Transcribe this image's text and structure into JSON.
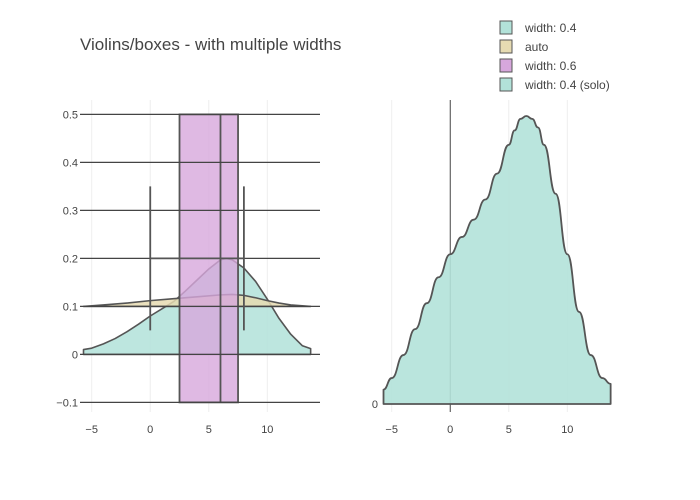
{
  "title": "Violins/boxes - with multiple widths",
  "legend": {
    "items": [
      {
        "label": "width: 0.4",
        "color": "#b2e2d9"
      },
      {
        "label": "auto",
        "color": "#e6dbb2"
      },
      {
        "label": "width: 0.6",
        "color": "#d7a7dc"
      },
      {
        "label": "width: 0.4 (solo)",
        "color": "#b2e2d9"
      }
    ]
  },
  "chart_data": [
    {
      "type": "violin",
      "panel": "left",
      "xlim": [
        -6,
        14.5
      ],
      "ylim": [
        -0.12,
        0.53
      ],
      "x_ticks": [
        -5,
        0,
        5,
        10
      ],
      "x_tick_labels": [
        "−5",
        "0",
        "5",
        "10"
      ],
      "y_ticks": [
        -0.1,
        0,
        0.1,
        0.2,
        0.3,
        0.4,
        0.5
      ],
      "y_tick_labels": [
        "−0.1",
        "0",
        "0.1",
        "0.2",
        "0.3",
        "0.4",
        "0.5"
      ],
      "grid": true,
      "box_series": {
        "name": "width: 0.6",
        "color": "#d7a7dc",
        "q1": 2.5,
        "median": 6,
        "q3": 7.5,
        "y_span": [
          -0.1,
          0.5
        ],
        "category_lines": [
          -0.1,
          0,
          0.1,
          0.2,
          0.3,
          0.4,
          0.5
        ]
      },
      "whisker_series": {
        "name": "auto",
        "whiskers": [
          {
            "x": 0,
            "y_range": [
              0.05,
              0.35
            ]
          },
          {
            "x": 8,
            "y_range": [
              0.05,
              0.35
            ]
          }
        ],
        "bar": {
          "x_range": [
            0,
            8
          ],
          "y": 0.2
        }
      },
      "violins": [
        {
          "name": "width: 0.4",
          "color": "#b2e2d9",
          "baseline": 0,
          "x": [
            -5.7,
            -5,
            -4,
            -3,
            -2,
            -1,
            0,
            1,
            2,
            3,
            4,
            5,
            6,
            6.5,
            7,
            8,
            9,
            10,
            11,
            12,
            13,
            13.7
          ],
          "y": [
            0.01,
            0.013,
            0.022,
            0.033,
            0.047,
            0.063,
            0.08,
            0.095,
            0.11,
            0.132,
            0.155,
            0.178,
            0.197,
            0.2,
            0.197,
            0.18,
            0.152,
            0.115,
            0.075,
            0.042,
            0.018,
            0.012
          ]
        },
        {
          "name": "auto",
          "color": "#e6dbb2",
          "baseline": 0.1,
          "x": [
            -5.7,
            -4,
            -2,
            0,
            2,
            4,
            6,
            7,
            8,
            9,
            10,
            11,
            12,
            13.7
          ],
          "y": [
            0.1,
            0.103,
            0.107,
            0.112,
            0.116,
            0.12,
            0.124,
            0.125,
            0.123,
            0.118,
            0.112,
            0.107,
            0.103,
            0.1
          ]
        }
      ]
    },
    {
      "type": "violin",
      "panel": "right",
      "xlim": [
        -6,
        14.5
      ],
      "x_ticks": [
        -5,
        0,
        5,
        10
      ],
      "x_tick_labels": [
        "−5",
        "0",
        "5",
        "10"
      ],
      "y_tick_labels": [
        "0"
      ],
      "grid": true,
      "violins": [
        {
          "name": "width: 0.4 (solo)",
          "color": "#b2e2d9",
          "baseline": 0,
          "x": [
            -5.7,
            -5,
            -4,
            -3,
            -2,
            -1,
            0,
            1,
            2,
            3,
            4,
            5,
            5.5,
            6,
            6.5,
            7,
            7.5,
            8,
            9,
            10,
            11,
            12,
            13,
            13.7
          ],
          "rel_height": [
            0.05,
            0.09,
            0.17,
            0.26,
            0.35,
            0.44,
            0.52,
            0.58,
            0.64,
            0.71,
            0.8,
            0.9,
            0.95,
            0.99,
            1.0,
            0.99,
            0.96,
            0.9,
            0.73,
            0.52,
            0.32,
            0.17,
            0.09,
            0.07
          ]
        }
      ]
    }
  ]
}
